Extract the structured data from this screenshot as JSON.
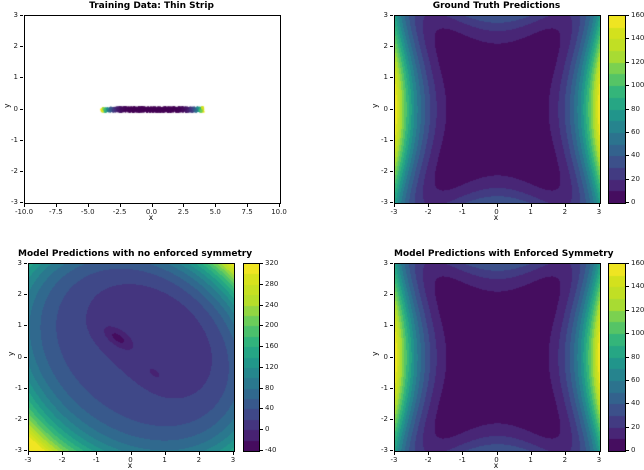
{
  "figure": {
    "background": "#ffffff",
    "colormap": "viridis",
    "viridis_stops": [
      [
        68,
        1,
        84
      ],
      [
        72,
        40,
        120
      ],
      [
        62,
        74,
        137
      ],
      [
        49,
        104,
        142
      ],
      [
        38,
        130,
        142
      ],
      [
        31,
        158,
        137
      ],
      [
        53,
        183,
        121
      ],
      [
        110,
        206,
        88
      ],
      [
        181,
        222,
        43
      ],
      [
        208,
        225,
        28
      ],
      [
        253,
        231,
        37
      ]
    ]
  },
  "chart_data": [
    {
      "type": "scatter",
      "title": "Training Data: Thin Strip",
      "xlabel": "x",
      "ylabel": "y",
      "xlim": [
        -10,
        10
      ],
      "ylim": [
        -3,
        3
      ],
      "xtick_labels": [
        "-10.0",
        "-7.5",
        "-5.0",
        "-2.5",
        "0.0",
        "2.5",
        "5.0",
        "7.5",
        "10.0"
      ],
      "ytick_labels": [
        "-3",
        "-2",
        "-1",
        "0",
        "1",
        "2",
        "3"
      ],
      "grid": false,
      "colorbar": null,
      "points": {
        "count": 750,
        "x_range": [
          -4,
          4
        ],
        "y_range": [
          -0.07,
          0.07
        ],
        "color_by": "target value f(x) = 2x^4 (viridis: dark purple near x=0, yellow at x=±4)",
        "color_gamma": 7,
        "seed": 12345,
        "marker_size_px": 1.2
      }
    },
    {
      "type": "contour_filled",
      "title": "Ground Truth Predictions",
      "xlabel": "x",
      "ylabel": "y",
      "xlim": [
        -3,
        3
      ],
      "ylim": [
        -3,
        3
      ],
      "xtick_labels": [
        "-3",
        "-2",
        "-1",
        "0",
        "1",
        "2",
        "3"
      ],
      "ytick_labels": [
        "-3",
        "-2",
        "-1",
        "0",
        "1",
        "2",
        "3"
      ],
      "z_function": "f(x,y) = 2x^4 + 0.5y^4 - 1.5x^2y^2 (dark star-shaped minimum at center, yellow maxima at x = ±3 near y = 0)",
      "quartic": {
        "a": 2,
        "b": 0.5,
        "c": 1.5
      },
      "zlim": [
        0,
        160
      ],
      "level_step": 10,
      "colormap": "viridis",
      "colorbar": {
        "position": "right",
        "ticks": [
          "0",
          "20",
          "40",
          "60",
          "80",
          "100",
          "120",
          "140",
          "160"
        ]
      }
    },
    {
      "type": "contour_filled",
      "title": "Model Predictions with no enforced symmetry",
      "xlabel": "x",
      "ylabel": "y",
      "xlim": [
        -3,
        3
      ],
      "ylim": [
        -3,
        3
      ],
      "xtick_labels": [
        "-3",
        "-2",
        "-1",
        "0",
        "1",
        "2",
        "3"
      ],
      "ytick_labels": [
        "-3",
        "-2",
        "-1",
        "0",
        "1",
        "2",
        "3"
      ],
      "z_function": "asymmetric tilted quartic bowl: f = 0.7(x^2+0.45xy+y^2)^2 - 7(x+y) + 15, with two local dips near (-0.4,0.6) and (0.67,-0.5); max ~320 at corner (-3,-3)",
      "model": {
        "bowl_coef": 0.7,
        "cross": 0.45,
        "tilt": -7,
        "offset": 15,
        "dips": [
          {
            "cx": -0.4,
            "cy": 0.62,
            "depth": 40,
            "var_along": 0.25,
            "var_across": 0.055,
            "angle_deg": -39
          },
          {
            "cx": 0.67,
            "cy": -0.5,
            "depth": 25,
            "var_along": 0.05,
            "var_across": 0.012,
            "angle_deg": -39
          }
        ]
      },
      "zlim": [
        -40,
        320
      ],
      "level_step": 20,
      "colormap": "viridis",
      "colorbar": {
        "position": "right",
        "ticks": [
          "-40",
          "0",
          "40",
          "80",
          "120",
          "160",
          "200",
          "240",
          "280",
          "320"
        ]
      }
    },
    {
      "type": "contour_filled",
      "title": "Model Predictions with Enforced Symmetry",
      "xlabel": "x",
      "ylabel": "y",
      "xlim": [
        -3,
        3
      ],
      "ylim": [
        -3,
        3
      ],
      "xtick_labels": [
        "-3",
        "-2",
        "-1",
        "0",
        "1",
        "2",
        "3"
      ],
      "ytick_labels": [
        "-3",
        "-2",
        "-1",
        "0",
        "1",
        "2",
        "3"
      ],
      "z_function": "f(x,y) = 2x^4 + 0.5y^4 - 1.5x^2y^2 (matches ground truth: dark star center, yellow at x = ±3)",
      "quartic": {
        "a": 2,
        "b": 0.5,
        "c": 1.5
      },
      "zlim": [
        0,
        160
      ],
      "level_step": 10,
      "colormap": "viridis",
      "colorbar": {
        "position": "right",
        "ticks": [
          "0",
          "20",
          "40",
          "60",
          "80",
          "100",
          "120",
          "140",
          "160"
        ]
      }
    }
  ]
}
